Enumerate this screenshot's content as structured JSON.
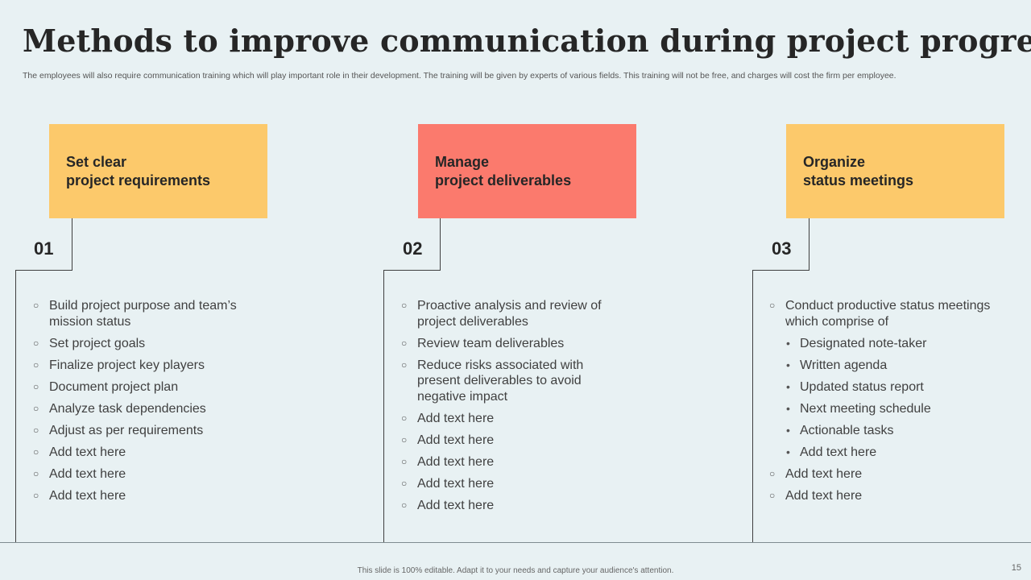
{
  "title": "Methods to improve communication during project progress",
  "subtitle": "The employees will also require communication training which will play important role in their development. The training will be given by experts of various fields. This training will not be free, and charges will cost the firm per employee.",
  "colors": {
    "yellow": "#fcc96b",
    "coral": "#fb7a6d",
    "background": "#e8f1f3"
  },
  "columns": [
    {
      "number": "01",
      "heading_line1": "Set clear",
      "heading_line2": "project requirements",
      "items": [
        "Build project purpose and team’s mission status",
        "Set project goals",
        "Finalize project key players",
        "Document project plan",
        "Analyze task dependencies",
        "Adjust as per requirements",
        "Add text here",
        "Add text here",
        "Add text here"
      ]
    },
    {
      "number": "02",
      "heading_line1": "Manage",
      "heading_line2": "project deliverables",
      "items": [
        "Proactive analysis and review of project deliverables",
        "Review team deliverables",
        "Reduce risks associated with present deliverables to avoid negative impact",
        "Add text here",
        "Add text here",
        "Add text here",
        "Add text here",
        "Add text here"
      ]
    },
    {
      "number": "03",
      "heading_line1": "Organize",
      "heading_line2": "status meetings",
      "items": [
        "Conduct  productive status meetings which comprise of",
        "Designated note-taker",
        "Written agenda",
        "Updated status report",
        "Next meeting schedule",
        "Actionable tasks",
        "Add text here",
        "Add text here",
        "Add text here"
      ]
    }
  ],
  "footer": "This slide is 100% editable.  Adapt it to your needs and capture your audience's attention.",
  "page_number": "15"
}
